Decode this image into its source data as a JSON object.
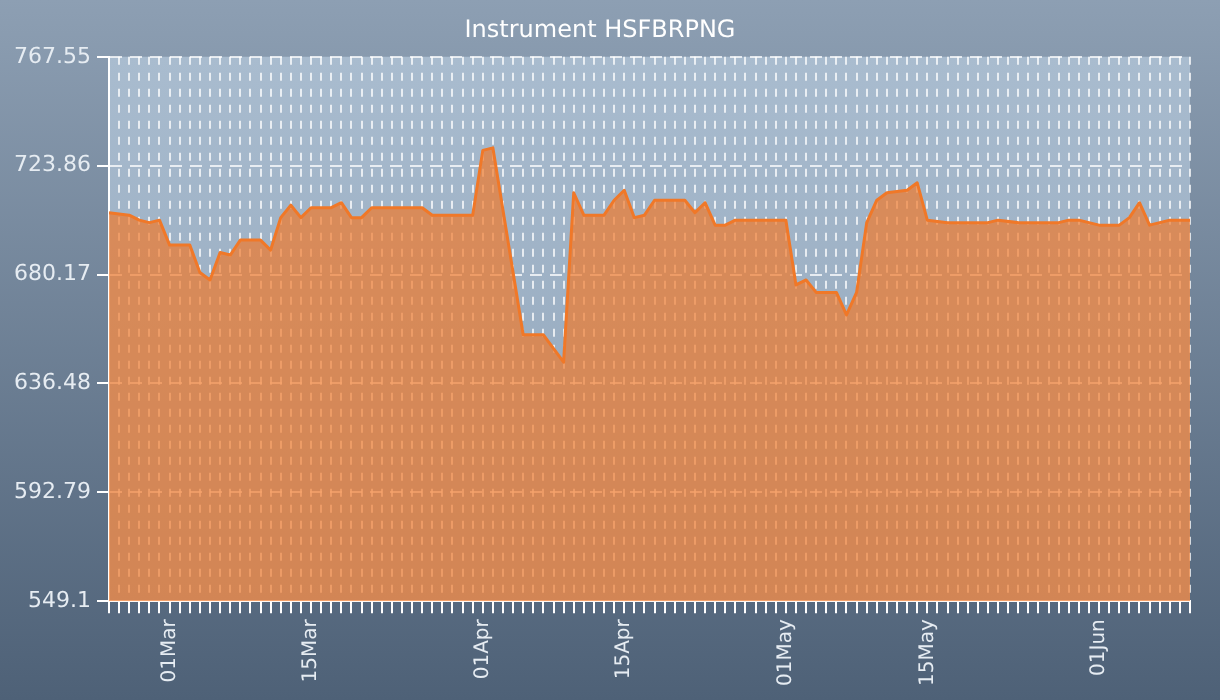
{
  "chart_data": {
    "type": "area",
    "title": "Instrument HSFBRPNG",
    "x": [
      "--02-23",
      "--02-25",
      "--02-26",
      "--02-27",
      "--02-28",
      "--03-01",
      "--03-03",
      "--03-04",
      "--03-05",
      "--03-06",
      "--03-07",
      "--03-08",
      "--03-10",
      "--03-11",
      "--03-12",
      "--03-13",
      "--03-14",
      "--03-15",
      "--03-17",
      "--03-18",
      "--03-19",
      "--03-20",
      "--03-21",
      "--03-26",
      "--03-27",
      "--03-31",
      "--04-01",
      "--04-02",
      "--04-05",
      "--04-07",
      "--04-09",
      "--04-10",
      "--04-11",
      "--04-13",
      "--04-14",
      "--04-15",
      "--04-16",
      "--04-17",
      "--04-18",
      "--04-21",
      "--04-22",
      "--04-23",
      "--04-24",
      "--04-25",
      "--04-26",
      "--04-29",
      "--05-01",
      "--05-02",
      "--05-03",
      "--05-04",
      "--05-06",
      "--05-07",
      "--05-08",
      "--05-09",
      "--05-10",
      "--05-11",
      "--05-13",
      "--05-14",
      "--05-15",
      "--05-17",
      "--05-21",
      "--05-22",
      "--05-24",
      "--05-28",
      "--05-29",
      "--05-30",
      "--06-01",
      "--06-03",
      "--06-04",
      "--06-05",
      "--06-06",
      "--06-08",
      "--06-10"
    ],
    "series": [
      {
        "color": "#f07828",
        "values": [
          705,
          704,
          702,
          701,
          702,
          692,
          692,
          681,
          678,
          689,
          688,
          694,
          694,
          690,
          703,
          708,
          703,
          707,
          707,
          709,
          703,
          703,
          707,
          707,
          704,
          704,
          730,
          731,
          656,
          656,
          645,
          713,
          704,
          704,
          710,
          714,
          703,
          704,
          710,
          710,
          705,
          709,
          700,
          700,
          702,
          702,
          702,
          676,
          678,
          673,
          673,
          664,
          673,
          701,
          710,
          713,
          714,
          717,
          702,
          701,
          701,
          702,
          701,
          701,
          702,
          702,
          700,
          700,
          703,
          709,
          700,
          702,
          702
        ]
      }
    ],
    "ylim": [
      549.1,
      767.55
    ],
    "yticks": [
      549.1,
      592.79,
      636.48,
      680.17,
      723.86,
      767.55
    ],
    "xlim": [
      "--02-23",
      "--06-10"
    ],
    "xticks": [
      {
        "value": "--02-23",
        "label": null
      },
      {
        "value": "--02-24",
        "label": null
      },
      {
        "value": "--02-25",
        "label": null
      },
      {
        "value": "--02-26",
        "label": null
      },
      {
        "value": "--02-27",
        "label": null
      },
      {
        "value": "--02-28",
        "label": null
      },
      {
        "value": "--03-01",
        "label": "01Mar"
      },
      {
        "value": "--03-02",
        "label": null
      },
      {
        "value": "--03-03",
        "label": null
      },
      {
        "value": "--03-04",
        "label": null
      },
      {
        "value": "--03-05",
        "label": null
      },
      {
        "value": "--03-06",
        "label": null
      },
      {
        "value": "--03-07",
        "label": null
      },
      {
        "value": "--03-08",
        "label": null
      },
      {
        "value": "--03-09",
        "label": null
      },
      {
        "value": "--03-10",
        "label": null
      },
      {
        "value": "--03-11",
        "label": null
      },
      {
        "value": "--03-12",
        "label": null
      },
      {
        "value": "--03-13",
        "label": null
      },
      {
        "value": "--03-14",
        "label": null
      },
      {
        "value": "--03-15",
        "label": "15Mar"
      },
      {
        "value": "--03-16",
        "label": null
      },
      {
        "value": "--03-17",
        "label": null
      },
      {
        "value": "--03-18",
        "label": null
      },
      {
        "value": "--03-19",
        "label": null
      },
      {
        "value": "--03-20",
        "label": null
      },
      {
        "value": "--03-21",
        "label": null
      },
      {
        "value": "--03-22",
        "label": null
      },
      {
        "value": "--03-23",
        "label": null
      },
      {
        "value": "--03-24",
        "label": null
      },
      {
        "value": "--03-25",
        "label": null
      },
      {
        "value": "--03-26",
        "label": null
      },
      {
        "value": "--03-27",
        "label": null
      },
      {
        "value": "--03-28",
        "label": null
      },
      {
        "value": "--03-29",
        "label": null
      },
      {
        "value": "--03-30",
        "label": null
      },
      {
        "value": "--03-31",
        "label": null
      },
      {
        "value": "--04-01",
        "label": "01Apr"
      },
      {
        "value": "--04-02",
        "label": null
      },
      {
        "value": "--04-03",
        "label": null
      },
      {
        "value": "--04-04",
        "label": null
      },
      {
        "value": "--04-05",
        "label": null
      },
      {
        "value": "--04-06",
        "label": null
      },
      {
        "value": "--04-07",
        "label": null
      },
      {
        "value": "--04-08",
        "label": null
      },
      {
        "value": "--04-09",
        "label": null
      },
      {
        "value": "--04-10",
        "label": null
      },
      {
        "value": "--04-11",
        "label": null
      },
      {
        "value": "--04-12",
        "label": null
      },
      {
        "value": "--04-13",
        "label": null
      },
      {
        "value": "--04-14",
        "label": null
      },
      {
        "value": "--04-15",
        "label": "15Apr"
      },
      {
        "value": "--04-16",
        "label": null
      },
      {
        "value": "--04-17",
        "label": null
      },
      {
        "value": "--04-18",
        "label": null
      },
      {
        "value": "--04-19",
        "label": null
      },
      {
        "value": "--04-20",
        "label": null
      },
      {
        "value": "--04-21",
        "label": null
      },
      {
        "value": "--04-22",
        "label": null
      },
      {
        "value": "--04-23",
        "label": null
      },
      {
        "value": "--04-24",
        "label": null
      },
      {
        "value": "--04-25",
        "label": null
      },
      {
        "value": "--04-26",
        "label": null
      },
      {
        "value": "--04-27",
        "label": null
      },
      {
        "value": "--04-28",
        "label": null
      },
      {
        "value": "--04-29",
        "label": null
      },
      {
        "value": "--04-30",
        "label": null
      },
      {
        "value": "--05-01",
        "label": "01May"
      },
      {
        "value": "--05-02",
        "label": null
      },
      {
        "value": "--05-03",
        "label": null
      },
      {
        "value": "--05-04",
        "label": null
      },
      {
        "value": "--05-05",
        "label": null
      },
      {
        "value": "--05-06",
        "label": null
      },
      {
        "value": "--05-07",
        "label": null
      },
      {
        "value": "--05-08",
        "label": null
      },
      {
        "value": "--05-09",
        "label": null
      },
      {
        "value": "--05-10",
        "label": null
      },
      {
        "value": "--05-11",
        "label": null
      },
      {
        "value": "--05-12",
        "label": null
      },
      {
        "value": "--05-13",
        "label": null
      },
      {
        "value": "--05-14",
        "label": null
      },
      {
        "value": "--05-15",
        "label": "15May"
      },
      {
        "value": "--05-16",
        "label": null
      },
      {
        "value": "--05-17",
        "label": null
      },
      {
        "value": "--05-18",
        "label": null
      },
      {
        "value": "--05-19",
        "label": null
      },
      {
        "value": "--05-20",
        "label": null
      },
      {
        "value": "--05-21",
        "label": null
      },
      {
        "value": "--05-22",
        "label": null
      },
      {
        "value": "--05-23",
        "label": null
      },
      {
        "value": "--05-24",
        "label": null
      },
      {
        "value": "--05-25",
        "label": null
      },
      {
        "value": "--05-26",
        "label": null
      },
      {
        "value": "--05-27",
        "label": null
      },
      {
        "value": "--05-28",
        "label": null
      },
      {
        "value": "--05-29",
        "label": null
      },
      {
        "value": "--05-30",
        "label": null
      },
      {
        "value": "--05-31",
        "label": null
      },
      {
        "value": "--06-01",
        "label": "01Jun"
      },
      {
        "value": "--06-02",
        "label": null
      },
      {
        "value": "--06-03",
        "label": null
      },
      {
        "value": "--06-04",
        "label": null
      },
      {
        "value": "--06-05",
        "label": null
      },
      {
        "value": "--06-06",
        "label": null
      },
      {
        "value": "--06-07",
        "label": null
      },
      {
        "value": "--06-08",
        "label": null
      },
      {
        "value": "--06-09",
        "label": null
      },
      {
        "value": "--06-10",
        "label": null
      }
    ],
    "grid": true,
    "legend": false
  }
}
